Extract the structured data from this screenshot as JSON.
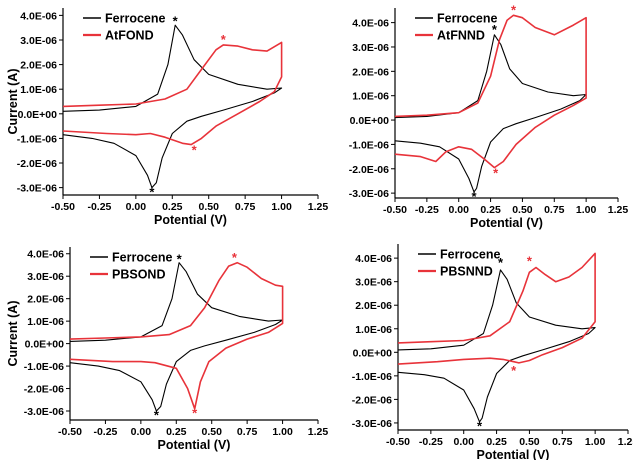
{
  "chart_data": [
    {
      "type": "line",
      "xlabel": "Potential (V)",
      "ylabel": "Current (A)",
      "xlim": [
        -0.5,
        1.25
      ],
      "ylim": [
        -3.3e-06,
        4.3e-06
      ],
      "x_ticks": [
        "-0.50",
        "-0.25",
        "0.00",
        "0.25",
        "0.50",
        "0.75",
        "1.00",
        "1.25"
      ],
      "y_ticks": [
        "-3.0E-06",
        "-2.0E-06",
        "-1.0E-06",
        "0.0E+00",
        "1.0E-06",
        "2.0E-06",
        "3.0E-06",
        "4.0E-06"
      ],
      "legend_position": "top-left",
      "series": [
        {
          "name": "Ferrocene",
          "color": "#000000",
          "x": [
            -0.5,
            -0.25,
            0.0,
            0.15,
            0.22,
            0.27,
            0.32,
            0.4,
            0.5,
            0.7,
            0.9,
            1.0,
            0.95,
            0.8,
            0.6,
            0.45,
            0.35,
            0.25,
            0.18,
            0.14,
            0.11,
            0.08,
            0.0,
            -0.15,
            -0.3,
            -0.5
          ],
          "y": [
            1e-07,
            1.5e-07,
            3e-07,
            8e-07,
            2e-06,
            3.6e-06,
            3.2e-06,
            2.2e-06,
            1.6e-06,
            1.2e-06,
            1e-06,
            1.05e-06,
            8.5e-07,
            5e-07,
            1.5e-07,
            -1e-07,
            -3e-07,
            -8e-07,
            -1.8e-06,
            -2.8e-06,
            -3e-06,
            -2.5e-06,
            -1.7e-06,
            -1.2e-06,
            -1e-06,
            -8.5e-07
          ]
        },
        {
          "name": "AtFOND",
          "color": "#e8333a",
          "x": [
            -0.5,
            -0.25,
            0.0,
            0.2,
            0.35,
            0.45,
            0.55,
            0.6,
            0.7,
            0.8,
            0.9,
            1.0,
            1.0,
            0.95,
            0.85,
            0.7,
            0.55,
            0.45,
            0.38,
            0.32,
            0.2,
            0.1,
            0.0,
            -0.2,
            -0.5
          ],
          "y": [
            3e-07,
            3.5e-07,
            4e-07,
            6e-07,
            1e-06,
            1.8e-06,
            2.6e-06,
            2.8e-06,
            2.75e-06,
            2.6e-06,
            2.55e-06,
            2.9e-06,
            1.5e-06,
            9e-07,
            5e-07,
            0.0,
            -5e-07,
            -1e-06,
            -1.25e-06,
            -1.2e-06,
            -9.5e-07,
            -8e-07,
            -8.5e-07,
            -8e-07,
            -7e-07
          ]
        }
      ],
      "annotations": [
        {
          "text": "*",
          "x": 0.27,
          "y": 3.75e-06,
          "color": "#000000"
        },
        {
          "text": "*",
          "x": 0.11,
          "y": -3.2e-06,
          "color": "#000000"
        },
        {
          "text": "*",
          "x": 0.6,
          "y": 3e-06,
          "color": "#e8333a"
        },
        {
          "text": "*",
          "x": 0.4,
          "y": -1.5e-06,
          "color": "#e8333a"
        }
      ]
    },
    {
      "type": "line",
      "xlabel": "Potential (V)",
      "ylabel": "",
      "xlim": [
        -0.5,
        1.25
      ],
      "ylim": [
        -3.2e-06,
        4.6e-06
      ],
      "x_ticks": [
        "-0.50",
        "-0.25",
        "0.00",
        "0.25",
        "0.50",
        "0.75",
        "1.00",
        "1.25"
      ],
      "y_ticks": [
        "-3.0E-06",
        "-2.0E-06",
        "-1.0E-06",
        "0.0E+00",
        "1.0E-06",
        "2.0E-06",
        "3.0E-06",
        "4.0E-06"
      ],
      "legend_position": "top-left",
      "series": [
        {
          "name": "Ferrocene",
          "color": "#000000",
          "x": [
            -0.5,
            -0.25,
            0.0,
            0.15,
            0.22,
            0.28,
            0.33,
            0.4,
            0.5,
            0.7,
            0.9,
            1.0,
            0.95,
            0.8,
            0.6,
            0.45,
            0.35,
            0.25,
            0.18,
            0.14,
            0.12,
            0.08,
            0.0,
            -0.15,
            -0.3,
            -0.5
          ],
          "y": [
            1e-07,
            1.5e-07,
            3e-07,
            8e-07,
            2e-06,
            3.5e-06,
            3.1e-06,
            2.1e-06,
            1.5e-06,
            1.15e-06,
            1e-06,
            1.05e-06,
            8e-07,
            4.5e-07,
            1e-07,
            -1.5e-07,
            -3.5e-07,
            -9e-07,
            -1.9e-06,
            -2.8e-06,
            -2.95e-06,
            -2.4e-06,
            -1.6e-06,
            -1.1e-06,
            -9.5e-07,
            -8.5e-07
          ]
        },
        {
          "name": "AtFNND",
          "color": "#e8333a",
          "x": [
            -0.5,
            -0.25,
            0.0,
            0.15,
            0.25,
            0.32,
            0.38,
            0.43,
            0.5,
            0.6,
            0.75,
            0.9,
            1.0,
            1.0,
            0.9,
            0.75,
            0.6,
            0.45,
            0.35,
            0.28,
            0.2,
            0.1,
            0.0,
            -0.1,
            -0.18,
            -0.3,
            -0.5
          ],
          "y": [
            1.5e-07,
            2e-07,
            3e-07,
            7e-07,
            1.8e-06,
            3.3e-06,
            4.1e-06,
            4.3e-06,
            4.2e-06,
            3.8e-06,
            3.5e-06,
            3.9e-06,
            4.2e-06,
            9e-07,
            6e-07,
            2e-07,
            -3e-07,
            -1e-06,
            -1.7e-06,
            -1.95e-06,
            -1.6e-06,
            -1.2e-06,
            -1.1e-06,
            -1.3e-06,
            -1.7e-06,
            -1.5e-06,
            -1.4e-06
          ]
        }
      ],
      "annotations": [
        {
          "text": "*",
          "x": 0.28,
          "y": 3.7e-06,
          "color": "#000000"
        },
        {
          "text": "*",
          "x": 0.12,
          "y": -3.15e-06,
          "color": "#000000"
        },
        {
          "text": "*",
          "x": 0.43,
          "y": 4.5e-06,
          "color": "#e8333a"
        },
        {
          "text": "*",
          "x": 0.29,
          "y": -2.2e-06,
          "color": "#e8333a"
        }
      ]
    },
    {
      "type": "line",
      "xlabel": "Potential (V)",
      "ylabel": "Current (A)",
      "xlim": [
        -0.5,
        1.25
      ],
      "ylim": [
        -3.4e-06,
        4.3e-06
      ],
      "x_ticks": [
        "-0.50",
        "-0.25",
        "0.00",
        "0.25",
        "0.50",
        "0.75",
        "1.00",
        "1.25"
      ],
      "y_ticks": [
        "-3.0E-06",
        "-2.0E-06",
        "-1.0E-06",
        "0.0E+00",
        "1.0E-06",
        "2.0E-06",
        "3.0E-06",
        "4.0E-06"
      ],
      "legend_position": "top-left",
      "series": [
        {
          "name": "Ferrocene",
          "color": "#000000",
          "x": [
            -0.5,
            -0.25,
            0.0,
            0.15,
            0.22,
            0.27,
            0.32,
            0.4,
            0.5,
            0.7,
            0.9,
            1.0,
            0.95,
            0.8,
            0.6,
            0.45,
            0.35,
            0.25,
            0.18,
            0.14,
            0.11,
            0.08,
            0.0,
            -0.15,
            -0.3,
            -0.5
          ],
          "y": [
            1e-07,
            1.5e-07,
            3e-07,
            8e-07,
            2e-06,
            3.6e-06,
            3.2e-06,
            2.2e-06,
            1.6e-06,
            1.2e-06,
            1e-06,
            1.05e-06,
            8.5e-07,
            5e-07,
            1.5e-07,
            -1e-07,
            -3e-07,
            -8e-07,
            -1.8e-06,
            -2.8e-06,
            -3e-06,
            -2.5e-06,
            -1.7e-06,
            -1.2e-06,
            -1e-06,
            -8.5e-07
          ]
        },
        {
          "name": "PBSOND",
          "color": "#e8333a",
          "x": [
            -0.5,
            -0.25,
            0.0,
            0.2,
            0.35,
            0.45,
            0.55,
            0.62,
            0.68,
            0.75,
            0.85,
            0.95,
            1.0,
            1.0,
            0.9,
            0.75,
            0.6,
            0.48,
            0.42,
            0.38,
            0.33,
            0.25,
            0.1,
            0.0,
            -0.2,
            -0.5
          ],
          "y": [
            2e-07,
            2.5e-07,
            3e-07,
            4e-07,
            8e-07,
            1.6e-06,
            2.8e-06,
            3.45e-06,
            3.6e-06,
            3.4e-06,
            2.9e-06,
            2.6e-06,
            2.55e-06,
            9e-07,
            5e-07,
            2e-07,
            -2e-07,
            -8e-07,
            -1.7e-06,
            -2.9e-06,
            -2e-06,
            -1.1e-06,
            -8.5e-07,
            -8e-07,
            -8e-07,
            -7e-07
          ]
        }
      ],
      "annotations": [
        {
          "text": "*",
          "x": 0.27,
          "y": 3.75e-06,
          "color": "#000000"
        },
        {
          "text": "*",
          "x": 0.11,
          "y": -3.2e-06,
          "color": "#000000"
        },
        {
          "text": "*",
          "x": 0.66,
          "y": 3.8e-06,
          "color": "#e8333a"
        },
        {
          "text": "*",
          "x": 0.38,
          "y": -3.1e-06,
          "color": "#e8333a"
        }
      ]
    },
    {
      "type": "line",
      "xlabel": "Potential (V)",
      "ylabel": "",
      "xlim": [
        -0.5,
        1.25
      ],
      "ylim": [
        -3.3e-06,
        4.6e-06
      ],
      "x_ticks": [
        "-0.50",
        "-0.25",
        "0.00",
        "0.25",
        "0.50",
        "0.75",
        "1.00",
        "1.25"
      ],
      "y_ticks": [
        "-3.0E-06",
        "-2.0E-06",
        "-1.0E-06",
        "0.0E+00",
        "1.0E-06",
        "2.0E-06",
        "3.0E-06",
        "4.0E-06"
      ],
      "legend_position": "top-left",
      "series": [
        {
          "name": "Ferrocene",
          "color": "#000000",
          "x": [
            -0.5,
            -0.25,
            0.0,
            0.15,
            0.22,
            0.28,
            0.33,
            0.4,
            0.5,
            0.7,
            0.9,
            1.0,
            0.95,
            0.8,
            0.6,
            0.45,
            0.35,
            0.25,
            0.18,
            0.14,
            0.12,
            0.08,
            0.0,
            -0.15,
            -0.3,
            -0.5
          ],
          "y": [
            1e-07,
            1.5e-07,
            3e-07,
            8e-07,
            2e-06,
            3.5e-06,
            3.1e-06,
            2.1e-06,
            1.5e-06,
            1.15e-06,
            1e-06,
            1.05e-06,
            8e-07,
            4.5e-07,
            1e-07,
            -1.5e-07,
            -3.5e-07,
            -9e-07,
            -1.9e-06,
            -2.8e-06,
            -2.95e-06,
            -2.4e-06,
            -1.6e-06,
            -1.1e-06,
            -9.5e-07,
            -8.5e-07
          ]
        },
        {
          "name": "PBSNND",
          "color": "#e8333a",
          "x": [
            -0.5,
            -0.25,
            0.0,
            0.2,
            0.35,
            0.45,
            0.5,
            0.55,
            0.62,
            0.7,
            0.8,
            0.9,
            1.0,
            1.0,
            0.9,
            0.75,
            0.6,
            0.5,
            0.42,
            0.38,
            0.3,
            0.2,
            0.0,
            -0.2,
            -0.5
          ],
          "y": [
            4e-07,
            4.5e-07,
            5e-07,
            7e-07,
            1.3e-06,
            2.6e-06,
            3.4e-06,
            3.6e-06,
            3.3e-06,
            3e-06,
            3.2e-06,
            3.6e-06,
            4.2e-06,
            1.3e-06,
            6e-07,
            2e-07,
            -1e-07,
            -3.5e-07,
            -4.5e-07,
            -4e-07,
            -3e-07,
            -2.5e-07,
            -3e-07,
            -4e-07,
            -5e-07
          ]
        }
      ],
      "annotations": [
        {
          "text": "*",
          "x": 0.28,
          "y": 3.8e-06,
          "color": "#000000"
        },
        {
          "text": "*",
          "x": 0.12,
          "y": -3.15e-06,
          "color": "#000000"
        },
        {
          "text": "*",
          "x": 0.5,
          "y": 3.85e-06,
          "color": "#e8333a"
        },
        {
          "text": "*",
          "x": 0.38,
          "y": -8e-07,
          "color": "#e8333a"
        }
      ]
    }
  ]
}
